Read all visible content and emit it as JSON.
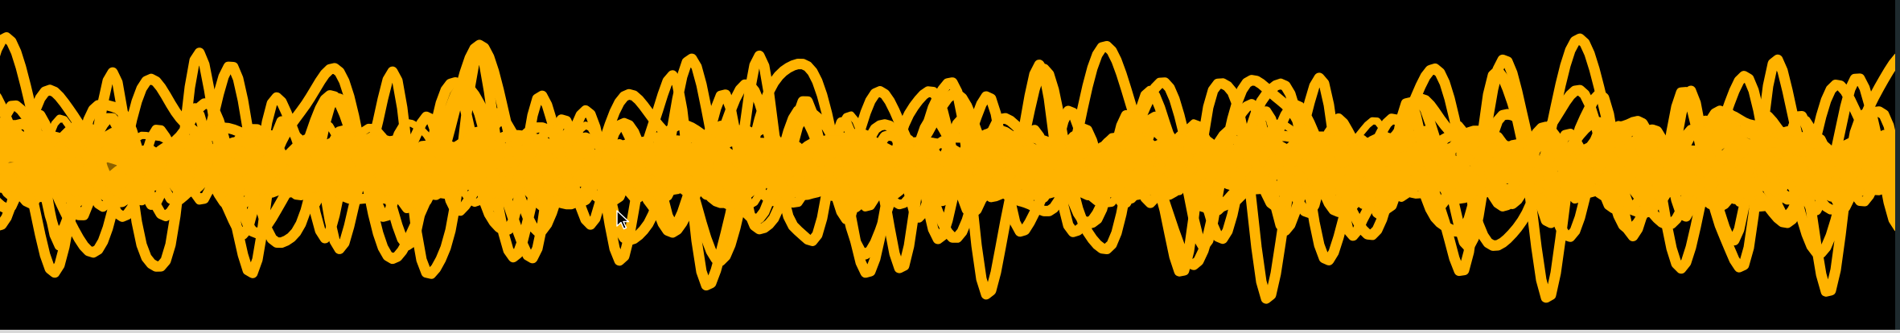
{
  "visualizer": {
    "stroke_color": "#FFB300",
    "background_color": "#000000",
    "trace_count": 26,
    "seed": 7
  },
  "cursor": {
    "icon": "arrow-pointer-icon",
    "fill": "#000000",
    "outline": "#FFFFFF"
  }
}
